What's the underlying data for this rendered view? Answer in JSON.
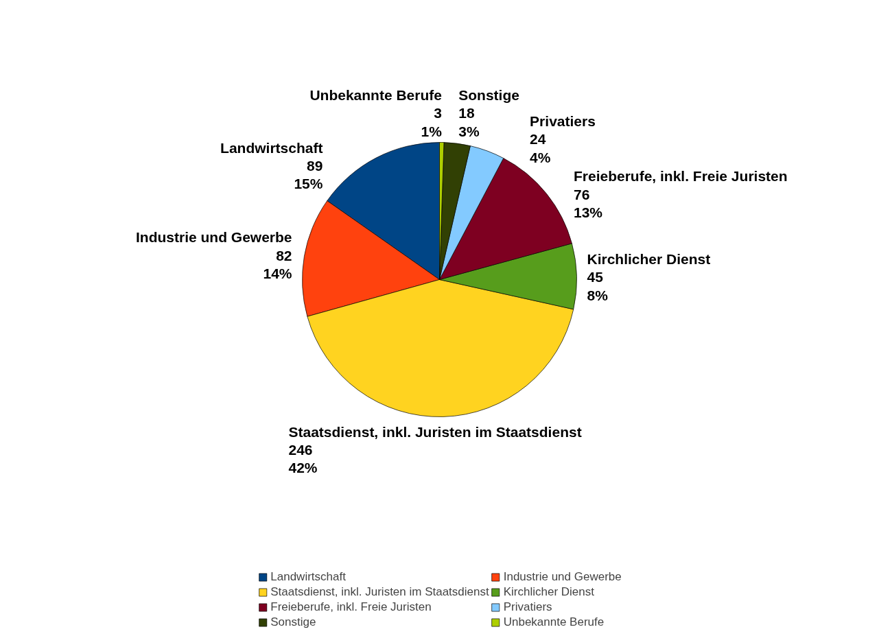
{
  "chart_data": {
    "type": "pie",
    "categories": [
      "Landwirtschaft",
      "Industrie und Gewerbe",
      "Staatsdienst, inkl. Juristen im Staatsdienst",
      "Kirchlicher Dienst",
      "Freieberufe, inkl. Freie Juristen",
      "Privatiers",
      "Sonstige",
      "Unbekannte Berufe"
    ],
    "values": [
      89,
      82,
      246,
      45,
      76,
      24,
      18,
      3
    ],
    "value_labels": [
      "89\n15%",
      "82\n14%",
      "246\n42%",
      "45\n8%",
      "76\n13%",
      "24\n4%",
      "18\n3%",
      "3\n1%"
    ],
    "colors": [
      "#004586",
      "#ff420e",
      "#ffd320",
      "#579d1c",
      "#7e0021",
      "#83caff",
      "#314004",
      "#aecf00"
    ],
    "data_labels": true,
    "legend": "bottom"
  }
}
